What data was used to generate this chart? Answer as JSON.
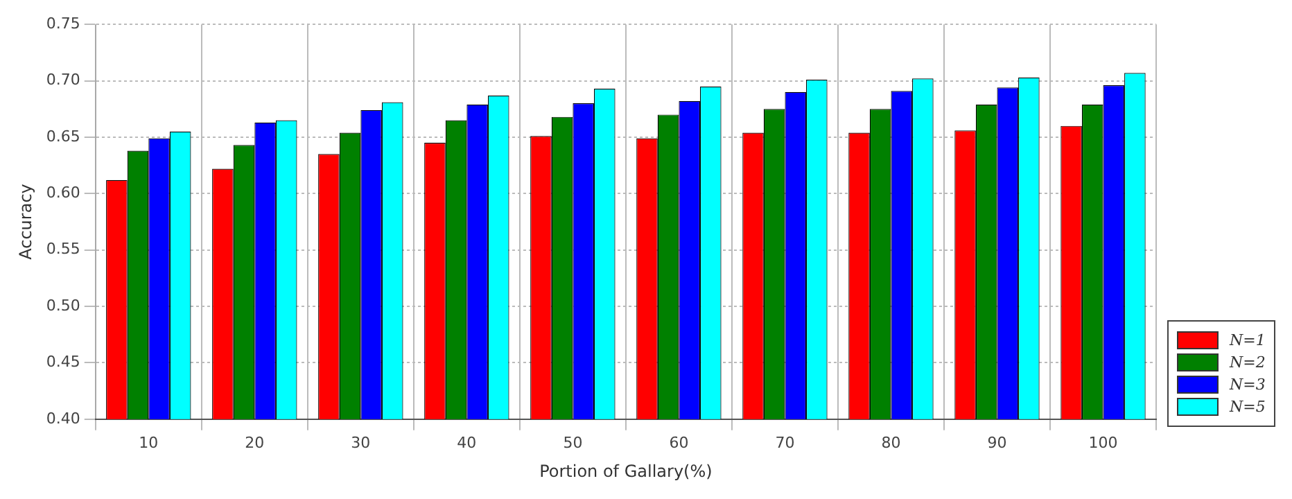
{
  "chart_data": {
    "type": "bar",
    "xlabel": "Portion of Gallary(%)",
    "ylabel": "Accuracy",
    "categories": [
      "10",
      "20",
      "30",
      "40",
      "50",
      "60",
      "70",
      "80",
      "90",
      "100"
    ],
    "series": [
      {
        "name": "N=1",
        "color": "#ff0000",
        "values": [
          0.612,
          0.622,
          0.635,
          0.645,
          0.651,
          0.649,
          0.654,
          0.654,
          0.656,
          0.66
        ]
      },
      {
        "name": "N=2",
        "color": "#008000",
        "values": [
          0.638,
          0.643,
          0.654,
          0.665,
          0.668,
          0.67,
          0.675,
          0.675,
          0.679,
          0.679
        ]
      },
      {
        "name": "N=3",
        "color": "#0000ff",
        "values": [
          0.649,
          0.663,
          0.674,
          0.679,
          0.68,
          0.682,
          0.69,
          0.691,
          0.694,
          0.696
        ]
      },
      {
        "name": "N=5",
        "color": "#00ffff",
        "values": [
          0.655,
          0.665,
          0.681,
          0.687,
          0.693,
          0.695,
          0.701,
          0.702,
          0.703,
          0.707
        ]
      }
    ],
    "ylim": [
      0.4,
      0.75
    ],
    "yticks": [
      {
        "value": 0.4,
        "label": "0.40"
      },
      {
        "value": 0.45,
        "label": "0.45"
      },
      {
        "value": 0.5,
        "label": "0.50"
      },
      {
        "value": 0.55,
        "label": "0.55"
      },
      {
        "value": 0.6,
        "label": "0.60"
      },
      {
        "value": 0.65,
        "label": "0.65"
      },
      {
        "value": 0.7,
        "label": "0.70"
      },
      {
        "value": 0.75,
        "label": "0.75"
      }
    ],
    "grid": true,
    "legend": "bottom right"
  }
}
